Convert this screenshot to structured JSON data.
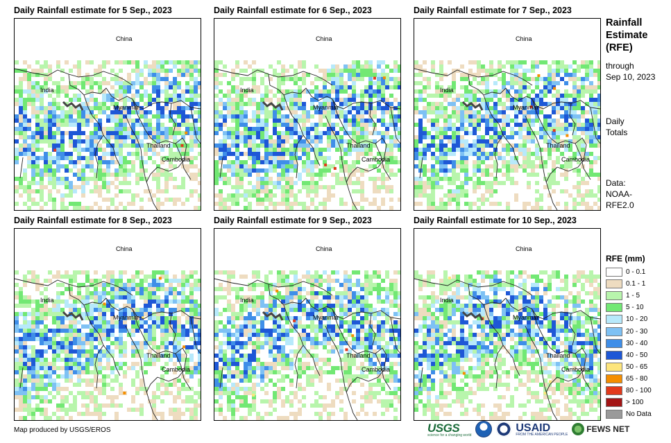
{
  "panels": [
    {
      "title": "Daily Rainfall estimate for 5 Sep., 2023",
      "labels": [
        "China",
        "India",
        "Myanmar",
        "Thailand",
        "Cambodia"
      ]
    },
    {
      "title": "Daily Rainfall estimate for 6 Sep., 2023",
      "labels": [
        "China",
        "India",
        "Myanmar",
        "Thailand",
        "Cambodia"
      ]
    },
    {
      "title": "Daily Rainfall estimate for 7 Sep., 2023",
      "labels": [
        "China",
        "India",
        "Myanmar",
        "Thailand",
        "Cambodia"
      ]
    },
    {
      "title": "Daily Rainfall estimate for 8 Sep., 2023",
      "labels": [
        "China",
        "India",
        "Myanmar",
        "Thailand",
        "Cambodia"
      ]
    },
    {
      "title": "Daily Rainfall estimate for 9 Sep., 2023",
      "labels": [
        "China",
        "India",
        "Myanmar",
        "Thailand",
        "Cambodia"
      ]
    },
    {
      "title": "Daily Rainfall estimate for 10 Sep., 2023",
      "labels": [
        "China",
        "India",
        "Myanmar",
        "Thailand",
        "Cambodia"
      ]
    }
  ],
  "sidebar": {
    "heading": [
      "Rainfall",
      "Estimate",
      "(RFE)"
    ],
    "through": [
      "through",
      "Sep 10, 2023"
    ],
    "totals": [
      "Daily",
      "Totals"
    ],
    "data": [
      "Data:",
      "NOAA-",
      "RFE2.0"
    ]
  },
  "legend": {
    "title": "RFE (mm)",
    "items": [
      {
        "label": "0 - 0.1",
        "color": "#ffffff"
      },
      {
        "label": "0.1 - 1",
        "color": "#eedcc0"
      },
      {
        "label": "1 - 5",
        "color": "#b8f5ac"
      },
      {
        "label": "5 - 10",
        "color": "#72e874"
      },
      {
        "label": "10 - 20",
        "color": "#b7e9fb"
      },
      {
        "label": "20 - 30",
        "color": "#7ec1f4"
      },
      {
        "label": "30 - 40",
        "color": "#3f8ee8"
      },
      {
        "label": "40 - 50",
        "color": "#1e57d6"
      },
      {
        "label": "50 - 65",
        "color": "#fde57c"
      },
      {
        "label": "65 - 80",
        "color": "#f58e00"
      },
      {
        "label": "80 - 100",
        "color": "#e23a1c"
      },
      {
        "label": "> 100",
        "color": "#a31515"
      },
      {
        "label": "No Data",
        "color": "#9a9a9a"
      }
    ]
  },
  "credit": "Map produced by USGS/EROS",
  "logos": {
    "usgs": "USGS",
    "usgs_tagline": "science for a changing world",
    "usaid": "USAID",
    "usaid_tagline": "FROM THE AMERICAN PEOPLE",
    "fews": "FEWS NET"
  }
}
